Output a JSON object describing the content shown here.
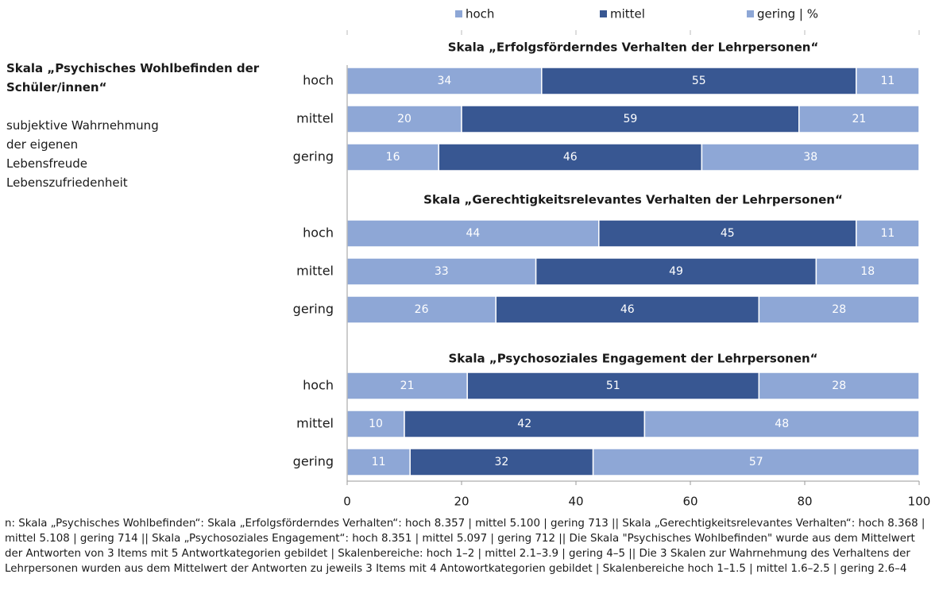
{
  "chart_data": [
    {
      "type": "bar",
      "stacked": true,
      "orientation": "horizontal",
      "title": "Skala „Erfolgsförderndes Verhalten der Lehrpersonen“",
      "categories": [
        "hoch",
        "mittel",
        "gering"
      ],
      "series": [
        {
          "name": "hoch",
          "color": "#8ea7d6",
          "values": [
            34,
            20,
            16
          ]
        },
        {
          "name": "mittel",
          "color": "#385792",
          "values": [
            55,
            59,
            46
          ]
        },
        {
          "name": "gering | %",
          "color": "#8ea7d6",
          "values": [
            11,
            21,
            38
          ]
        }
      ],
      "xlim": [
        0,
        100
      ],
      "xticks": [
        0,
        20,
        40,
        60,
        80,
        100
      ]
    },
    {
      "type": "bar",
      "stacked": true,
      "orientation": "horizontal",
      "title": "Skala „Gerechtigkeitsrelevantes Verhalten der Lehrpersonen“",
      "categories": [
        "hoch",
        "mittel",
        "gering"
      ],
      "series": [
        {
          "name": "hoch",
          "color": "#8ea7d6",
          "values": [
            44,
            33,
            26
          ]
        },
        {
          "name": "mittel",
          "color": "#385792",
          "values": [
            45,
            49,
            46
          ]
        },
        {
          "name": "gering | %",
          "color": "#8ea7d6",
          "values": [
            11,
            18,
            28
          ]
        }
      ],
      "xlim": [
        0,
        100
      ],
      "xticks": [
        0,
        20,
        40,
        60,
        80,
        100
      ]
    },
    {
      "type": "bar",
      "stacked": true,
      "orientation": "horizontal",
      "title": "Skala „Psychosoziales Engagement der Lehrpersonen“",
      "categories": [
        "hoch",
        "mittel",
        "gering"
      ],
      "series": [
        {
          "name": "hoch",
          "color": "#8ea7d6",
          "values": [
            21,
            10,
            11
          ]
        },
        {
          "name": "mittel",
          "color": "#385792",
          "values": [
            51,
            42,
            32
          ]
        },
        {
          "name": "gering | %",
          "color": "#8ea7d6",
          "values": [
            28,
            48,
            57
          ]
        }
      ],
      "xlim": [
        0,
        100
      ],
      "xticks": [
        0,
        20,
        40,
        60,
        80,
        100
      ]
    }
  ],
  "side_text": {
    "title": "Skala „Psychisches Wohlbefinden der Schüler/innen“",
    "lines": [
      "subjektive Wahrnehmung",
      "der eigenen",
      "Lebensfreude",
      "Lebenszufriedenheit"
    ]
  },
  "footnote": "n: Skala „Psychisches Wohlbefinden“: Skala „Erfolgsförderndes Verhalten“: hoch 8.357 | mittel 5.100 | gering 713 ||  Skala „Gerechtigkeitsrelevantes Verhalten“:  hoch 8.368 | mittel 5.108 | gering 714 || Skala „Psychosoziales Engagement“:  hoch 8.351 | mittel 5.097 | gering 712 || Die Skala \"Psychisches Wohlbefinden\" wurde aus dem Mittelwert der Antworten von 3 Items mit 5 Antwortkategorien gebildet | Skalenbereiche:  hoch 1–2  | mittel 2.1–3.9 | gering 4–5 || Die 3 Skalen zur Wahrnehmung des Verhaltens der Lehrpersonen wurden aus dem Mittelwert der Antworten zu jeweils 3 Items mit 4 Antowortkategorien gebildet | Skalenbereiche hoch 1–1.5  | mittel 1.6–2.5 | gering 2.6–4"
}
